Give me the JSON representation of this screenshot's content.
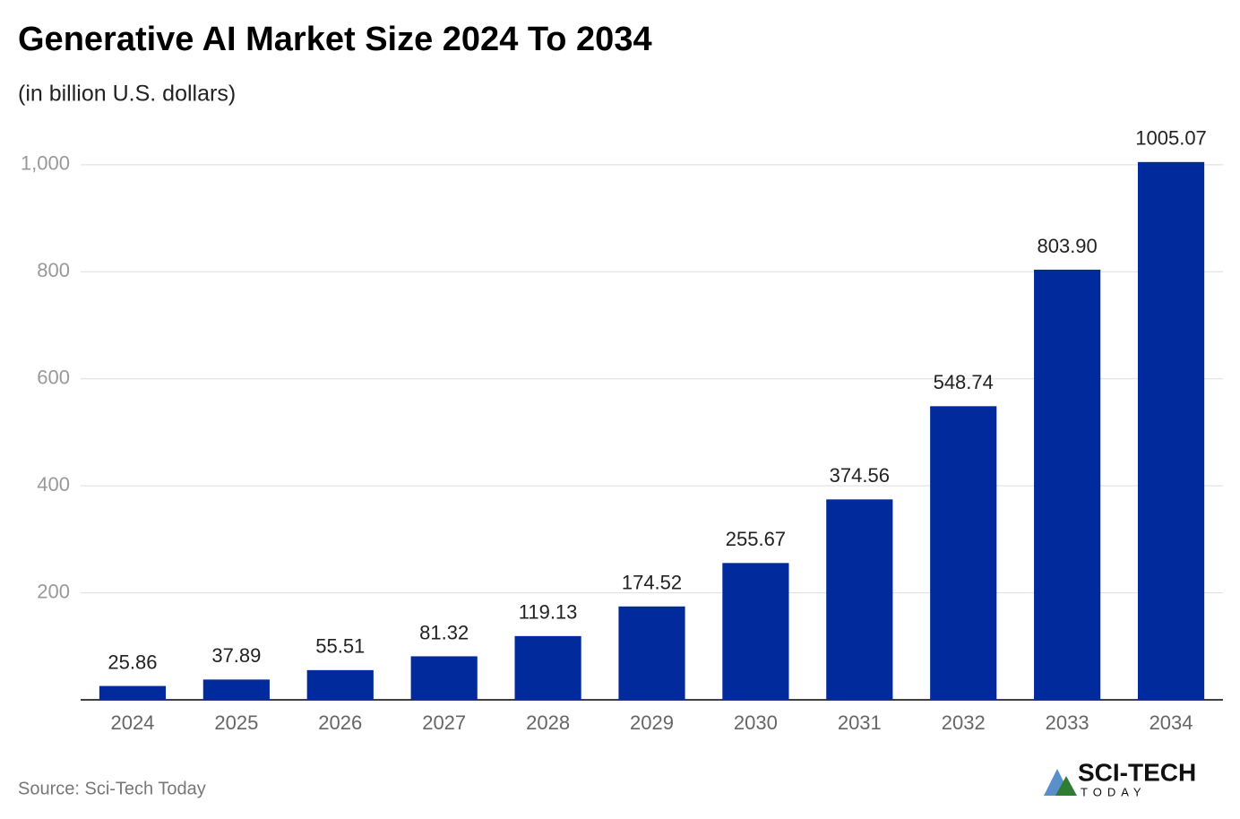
{
  "chart_data": {
    "type": "bar",
    "title": "Generative AI Market Size 2024 To 2034",
    "subtitle": "(in billion U.S. dollars)",
    "categories": [
      "2024",
      "2025",
      "2026",
      "2027",
      "2028",
      "2029",
      "2030",
      "2031",
      "2032",
      "2033",
      "2034"
    ],
    "values": [
      25.86,
      37.89,
      55.51,
      81.32,
      119.13,
      174.52,
      255.67,
      374.56,
      548.74,
      803.9,
      1005.07
    ],
    "value_labels": [
      "25.86",
      "37.89",
      "55.51",
      "81.32",
      "119.13",
      "174.52",
      "255.67",
      "374.56",
      "548.74",
      "803.90",
      "1005.07"
    ],
    "color": "#012a9c",
    "ylim": [
      0,
      1050
    ],
    "yticks": [
      200,
      400,
      600,
      800,
      {
        "value": 1000,
        "label": "1,000"
      }
    ],
    "grid": true,
    "source": "Source: Sci-Tech Today",
    "logo": {
      "name": "SCI-TECH",
      "tagline": "TODAY"
    }
  }
}
